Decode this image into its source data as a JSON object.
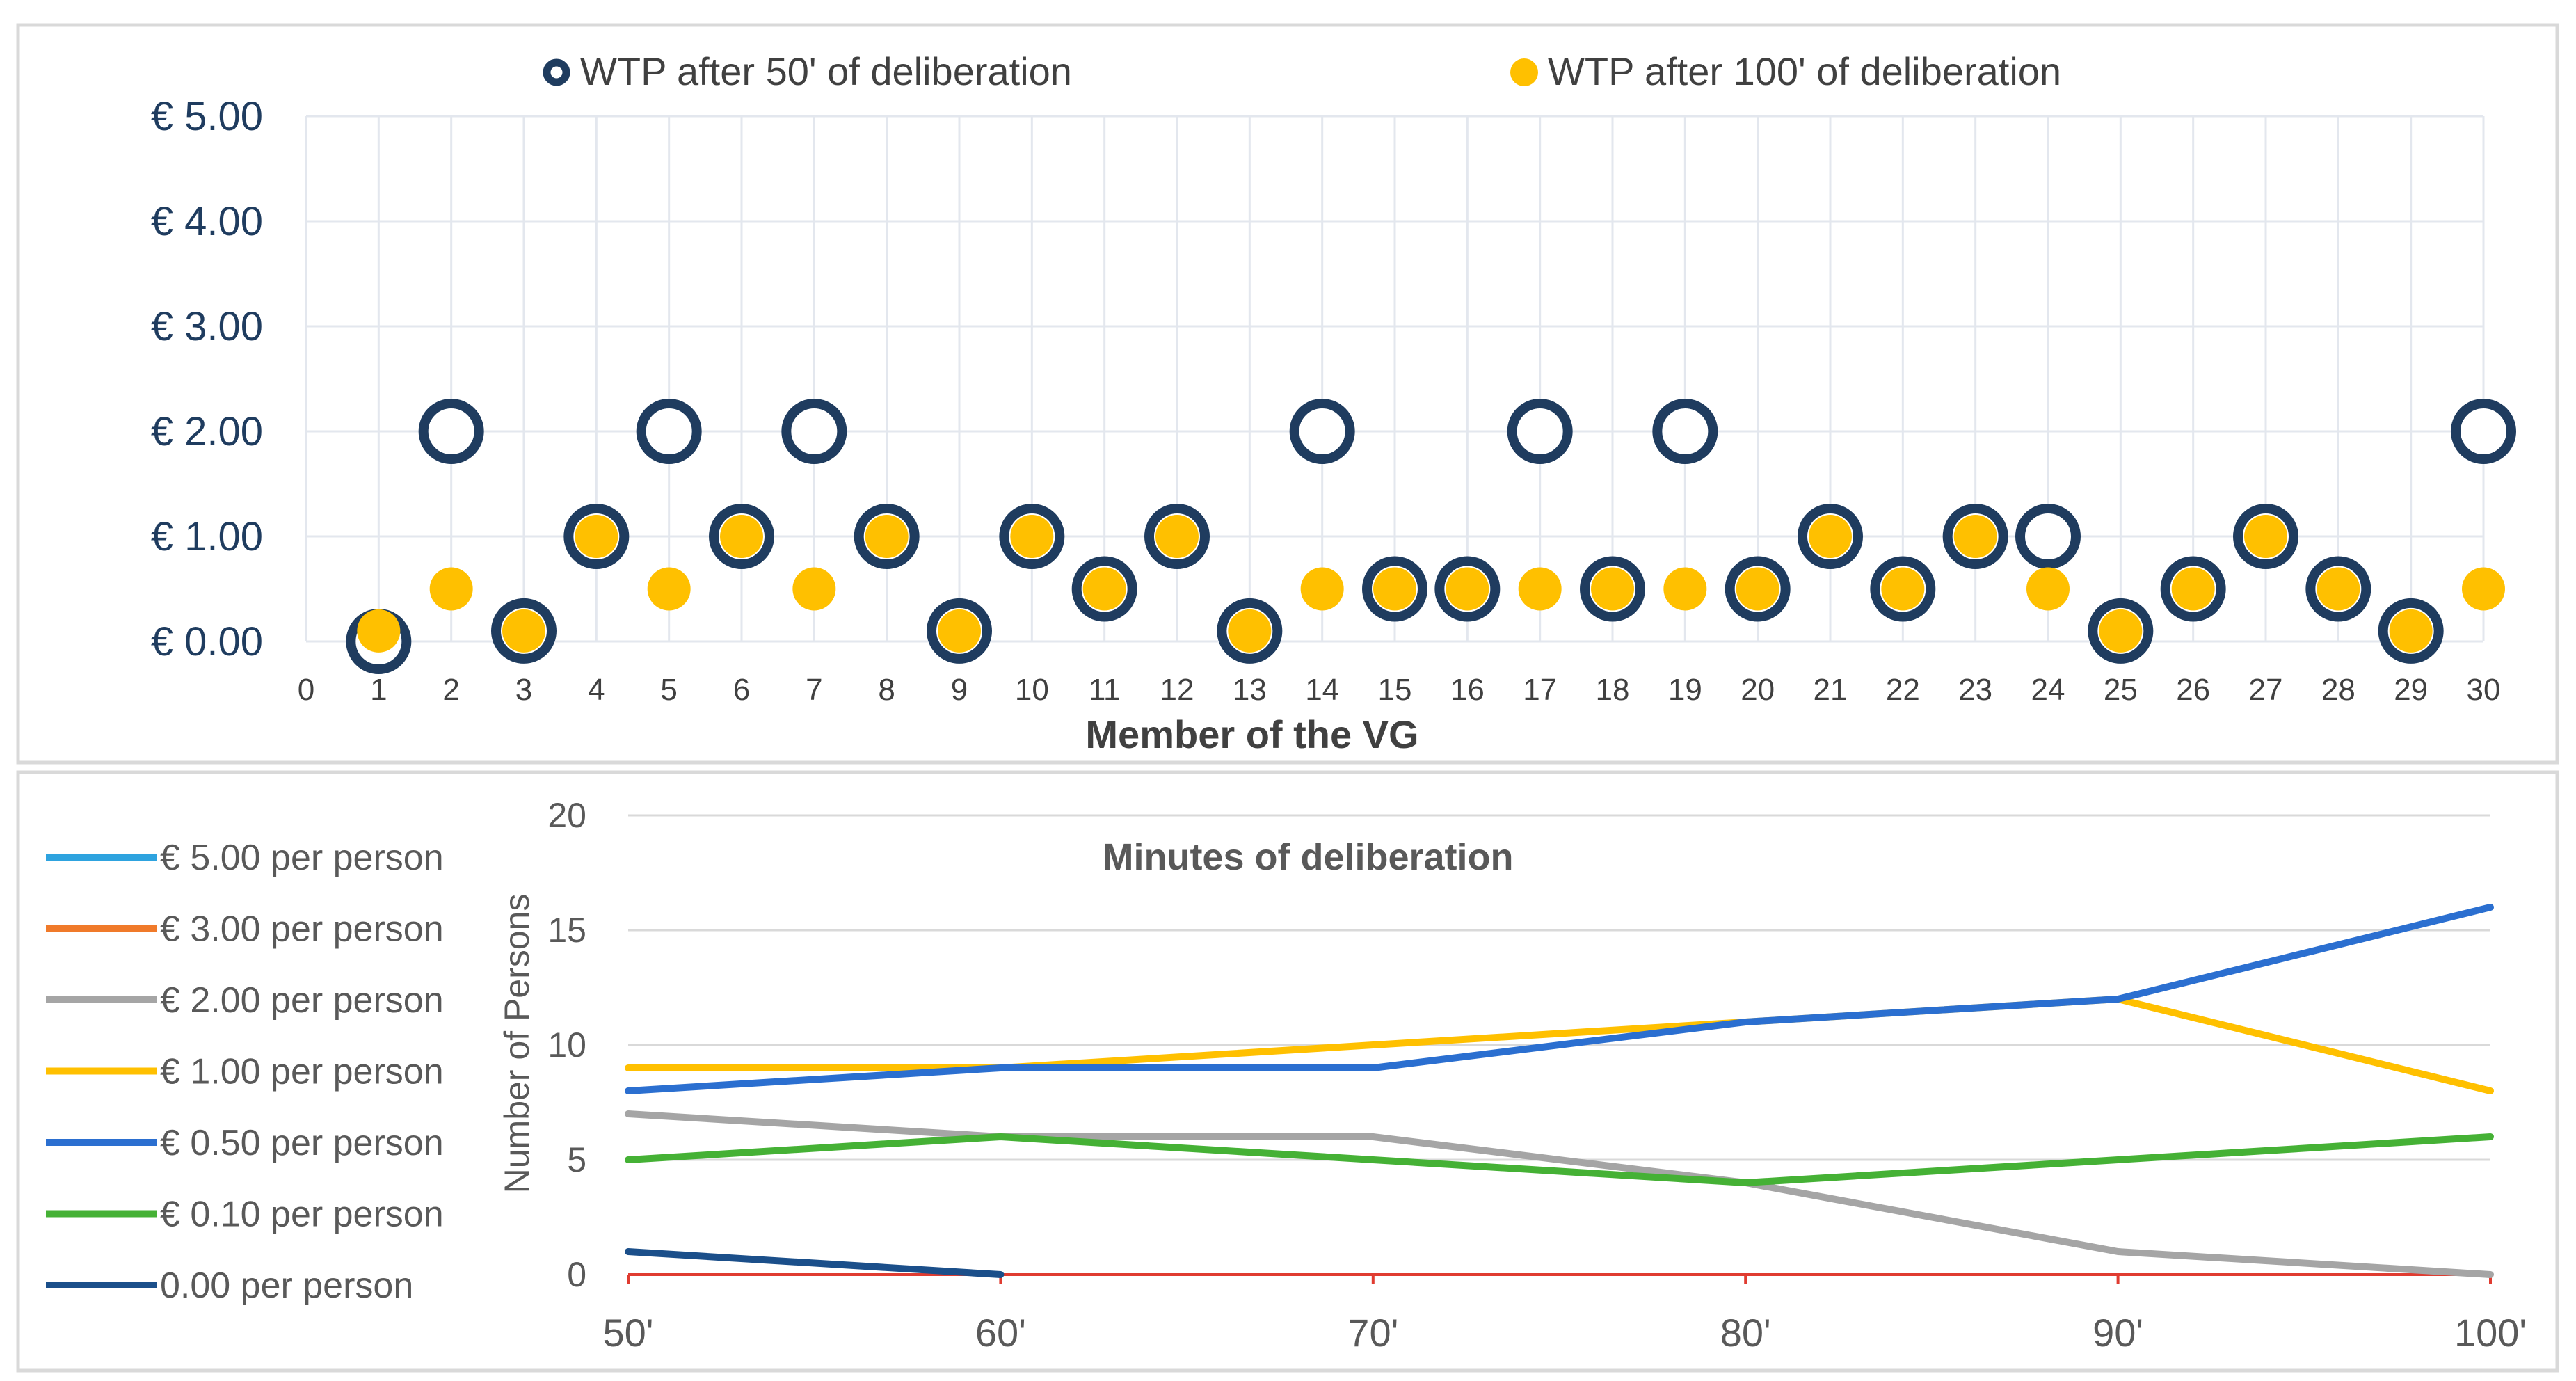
{
  "chart_data": [
    {
      "type": "scatter",
      "title": "",
      "xlabel": "Member of the VG",
      "ylabel": "",
      "xlim": [
        0,
        30
      ],
      "ylim": [
        0,
        5
      ],
      "grid": true,
      "legend_position": "top",
      "x_ticks": [
        "0",
        "1",
        "2",
        "3",
        "4",
        "5",
        "6",
        "7",
        "8",
        "9",
        "10",
        "11",
        "12",
        "13",
        "14",
        "15",
        "16",
        "17",
        "18",
        "19",
        "20",
        "21",
        "22",
        "23",
        "24",
        "25",
        "26",
        "27",
        "28",
        "29",
        "30"
      ],
      "y_ticks": [
        "€ 0.00",
        "€ 1.00",
        "€ 2.00",
        "€ 3.00",
        "€ 4.00",
        "€ 5.00"
      ],
      "series": [
        {
          "name": "WTP after 50' of deliberation",
          "color": "#1f3c5f",
          "marker": "ring",
          "x": [
            1,
            2,
            3,
            4,
            5,
            6,
            7,
            8,
            9,
            10,
            11,
            12,
            13,
            14,
            15,
            16,
            17,
            18,
            19,
            20,
            21,
            22,
            23,
            24,
            25,
            26,
            27,
            28,
            29,
            30
          ],
          "values": [
            0,
            2,
            0.1,
            1,
            2,
            1,
            2,
            1,
            0.1,
            1,
            0.5,
            1,
            0.1,
            2,
            0.5,
            0.5,
            2,
            0.5,
            2,
            0.5,
            1,
            0.5,
            1,
            1,
            0.1,
            0.5,
            1,
            0.5,
            0.1,
            2
          ]
        },
        {
          "name": "WTP after 100' of deliberation",
          "color": "#ffc000",
          "marker": "dot",
          "x": [
            1,
            2,
            3,
            4,
            5,
            6,
            7,
            8,
            9,
            10,
            11,
            12,
            13,
            14,
            15,
            16,
            17,
            18,
            19,
            20,
            21,
            22,
            23,
            24,
            25,
            26,
            27,
            28,
            29,
            30
          ],
          "values": [
            0.1,
            0.5,
            0.1,
            1,
            0.5,
            1,
            0.5,
            1,
            0.1,
            1,
            0.5,
            1,
            0.1,
            0.5,
            0.5,
            0.5,
            0.5,
            0.5,
            0.5,
            0.5,
            1,
            0.5,
            1,
            0.5,
            0.1,
            0.5,
            1,
            0.5,
            0.1,
            0.5
          ]
        }
      ]
    },
    {
      "type": "line",
      "title": "Minutes of deliberation",
      "xlabel": "",
      "ylabel": "Number of Persons",
      "ylim": [
        0,
        20
      ],
      "grid": true,
      "legend_position": "left",
      "categories": [
        "50'",
        "60'",
        "70'",
        "80'",
        "90'",
        "100'"
      ],
      "y_ticks": [
        "0",
        "5",
        "10",
        "15",
        "20"
      ],
      "series": [
        {
          "name": "€ 5.00 per person",
          "color": "#2ea3df",
          "values": [
            0,
            0,
            0,
            0,
            0,
            0
          ]
        },
        {
          "name": "€ 3.00 per person",
          "color": "#f07a2a",
          "values": [
            0,
            0,
            0,
            0,
            0,
            0
          ]
        },
        {
          "name": "€ 2.00 per person",
          "color": "#a5a5a5",
          "values": [
            7,
            6,
            6,
            4,
            1,
            0
          ]
        },
        {
          "name": "€ 1.00 per person",
          "color": "#ffc000",
          "values": [
            9,
            9,
            10,
            11,
            12,
            8
          ]
        },
        {
          "name": "€ 0.50 per person",
          "color": "#2b6fd0",
          "values": [
            8,
            9,
            9,
            11,
            12,
            16
          ]
        },
        {
          "name": "€ 0.10 per person",
          "color": "#45b135",
          "values": [
            5,
            6,
            5,
            4,
            5,
            6
          ]
        },
        {
          "name": "0.00 per person",
          "color": "#1b4f8a",
          "values": [
            1,
            0,
            null,
            null,
            null,
            null
          ]
        }
      ],
      "baseline_color": "#e03c31"
    }
  ]
}
